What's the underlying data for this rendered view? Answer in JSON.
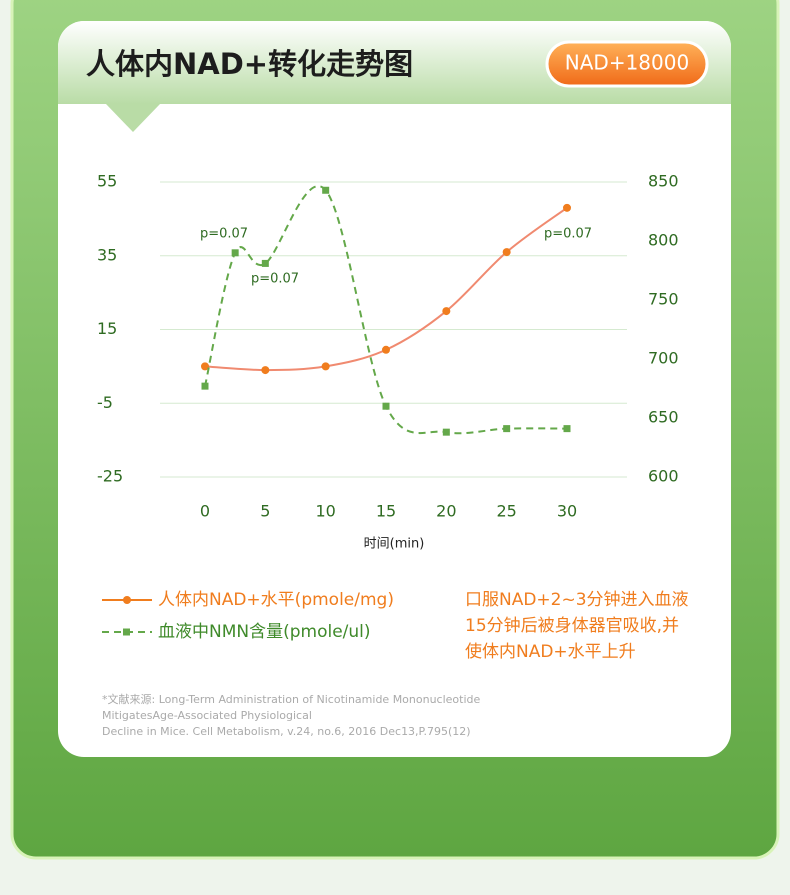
{
  "header": {
    "title": "人体内NAD+转化走势图",
    "badge": "NAD+18000"
  },
  "chart_data": {
    "type": "line",
    "x_label": "时间(min)",
    "xlim": [
      0,
      30
    ],
    "xticks": [
      0,
      5,
      10,
      15,
      20,
      25,
      30
    ],
    "ylim": [
      -25,
      55
    ],
    "yticks": [
      -25,
      -5,
      15,
      35,
      55
    ],
    "y2lim": [
      600,
      850
    ],
    "y2ticks": [
      600,
      650,
      700,
      750,
      800,
      850
    ],
    "grid": true,
    "annotations": [
      "p=0.07",
      "p=0.07",
      "p=0.07"
    ],
    "series": [
      {
        "name": "人体内NAD+水平(pmole/mg)",
        "color": "#f08a70",
        "marker_color": "#f07d1e",
        "x": [
          0,
          5,
          10,
          15,
          20,
          25,
          30
        ],
        "values": [
          5,
          4,
          5,
          9.5,
          20,
          36,
          48
        ]
      },
      {
        "name": "血液中NMN含量(pmole/ul)",
        "color": "#64a84a",
        "axis": "y2",
        "dashed": true,
        "x": [
          0,
          2.5,
          5,
          10,
          15,
          20,
          25,
          30
        ],
        "values": [
          677,
          790,
          781,
          843,
          660,
          638,
          641,
          641
        ]
      }
    ]
  },
  "note": {
    "lines": [
      "口服NAD+2~3分钟进入血液",
      "15分钟后被身体器官吸收,并",
      "使体内NAD+水平上升"
    ]
  },
  "source": {
    "lines": [
      "*文献来源: Long-Term Administration of Nicotinamide Mononucleotide",
      "MitigatesAge-Associated Physiological",
      "Decline in Mice. Cell Metabolism, v.24, no.6, 2016 Dec13,P.795(12)"
    ]
  }
}
